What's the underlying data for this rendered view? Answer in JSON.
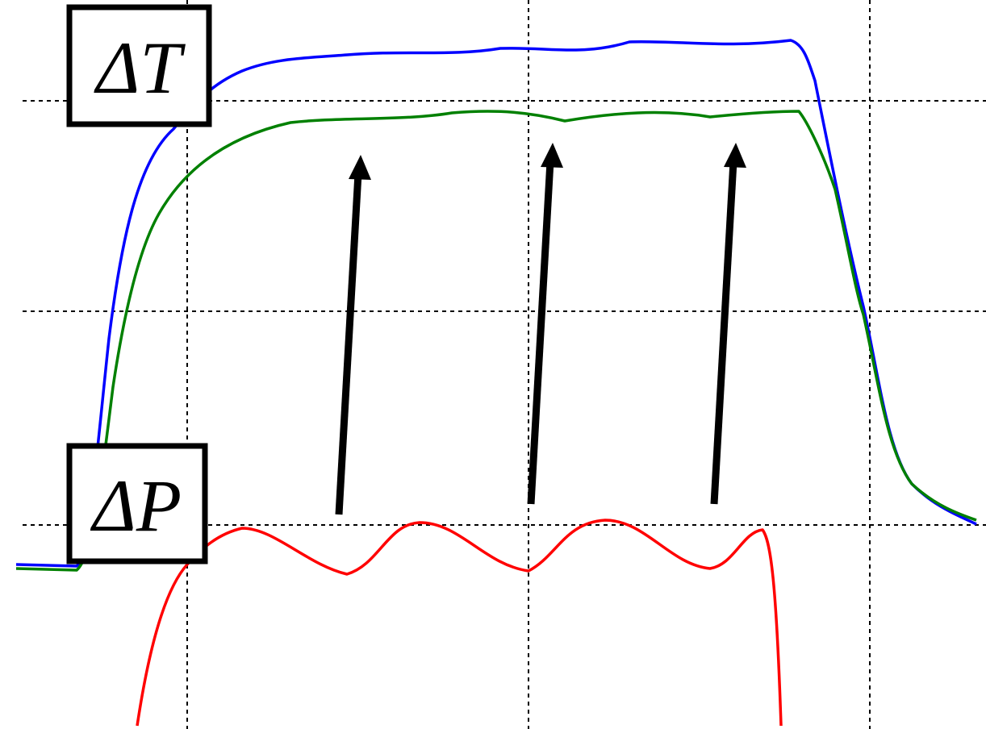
{
  "labels": {
    "delta_t": "ΔT",
    "delta_p": "ΔP"
  }
}
